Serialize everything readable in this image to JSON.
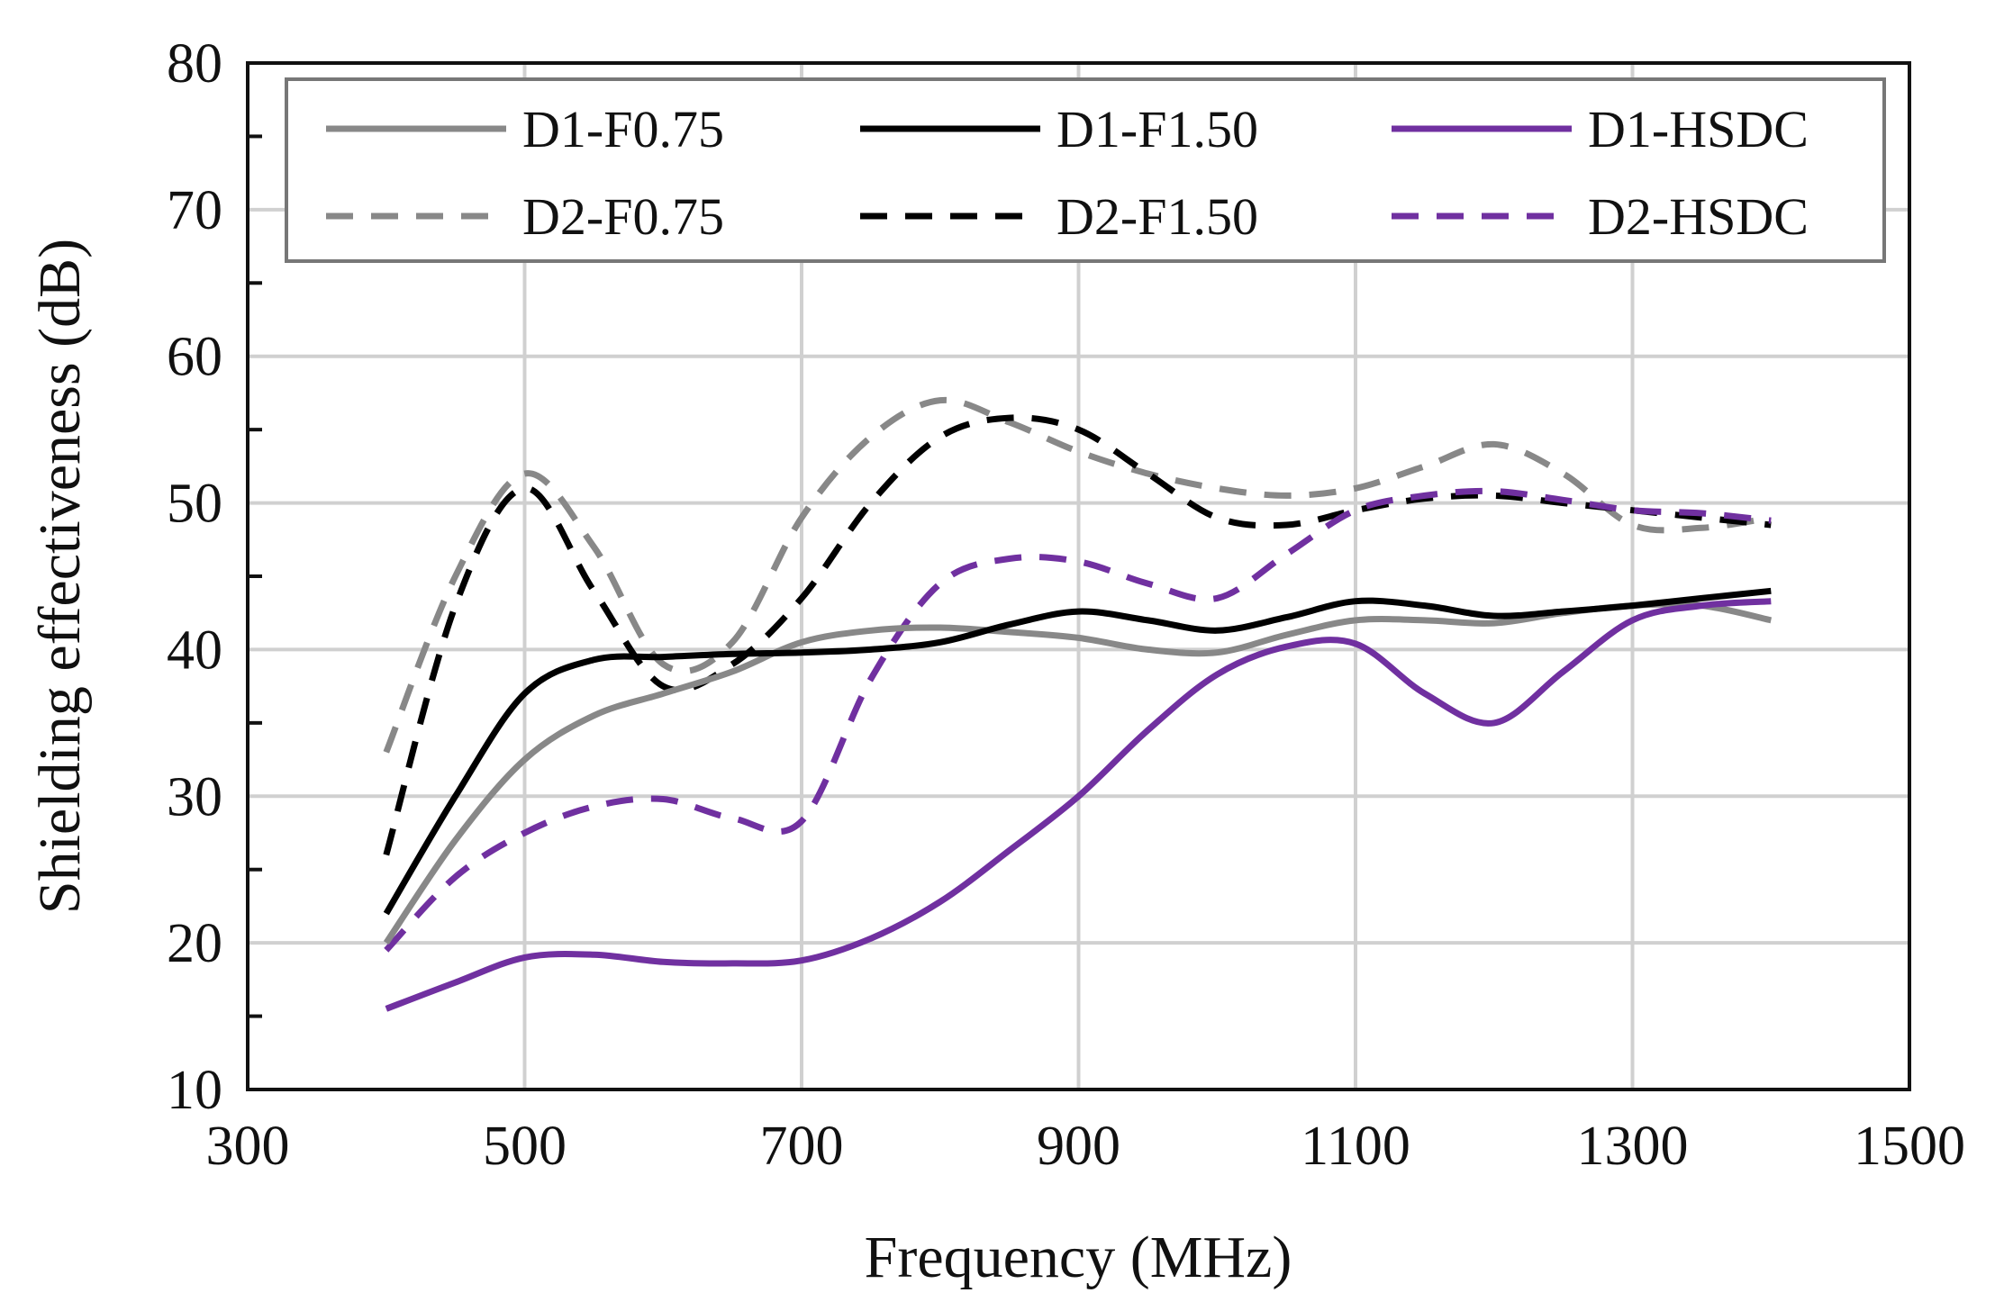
{
  "chart_data": {
    "type": "line",
    "title": "",
    "xlabel": "Frequency (MHz)",
    "ylabel": "Shielding effectiveness (dB)",
    "xlim": [
      300,
      1500
    ],
    "ylim": [
      10,
      80
    ],
    "xticks": [
      300,
      500,
      700,
      900,
      1100,
      1300,
      1500
    ],
    "yticks": [
      10,
      20,
      30,
      40,
      50,
      60,
      70,
      80
    ],
    "grid": true,
    "legend_position": "top",
    "x": [
      400,
      450,
      500,
      550,
      600,
      650,
      700,
      750,
      800,
      850,
      900,
      950,
      1000,
      1050,
      1100,
      1150,
      1200,
      1250,
      1300,
      1350,
      1400
    ],
    "series": [
      {
        "name": "D1-F0.75",
        "color": "#888888",
        "dash": "solid",
        "values": [
          20,
          27,
          32.5,
          35.5,
          37,
          38.5,
          40.5,
          41.3,
          41.5,
          41.2,
          40.8,
          40,
          39.8,
          41,
          42,
          42,
          41.8,
          42.5,
          43,
          43,
          42
        ]
      },
      {
        "name": "D1-F1.50",
        "color": "#000000",
        "dash": "solid",
        "values": [
          22,
          30,
          37,
          39.3,
          39.5,
          39.7,
          39.8,
          40,
          40.5,
          41.7,
          42.6,
          42,
          41.3,
          42.2,
          43.3,
          43,
          42.3,
          42.6,
          43,
          43.5,
          44
        ]
      },
      {
        "name": "D1-HSDC",
        "color": "#7030A0",
        "dash": "solid",
        "values": [
          15.5,
          17.3,
          19,
          19.2,
          18.7,
          18.6,
          18.8,
          20.3,
          22.8,
          26.3,
          30,
          34.5,
          38.3,
          40.2,
          40.4,
          37,
          35,
          38.5,
          42,
          43,
          43.3
        ]
      },
      {
        "name": "D2-F0.75",
        "color": "#888888",
        "dash": "dashed",
        "values": [
          33,
          45,
          52,
          47,
          39,
          40.5,
          49,
          54.5,
          57,
          55.5,
          53.5,
          52,
          51,
          50.5,
          51,
          52.5,
          54,
          52,
          48.5,
          48.3,
          49
        ]
      },
      {
        "name": "D2-F1.50",
        "color": "#000000",
        "dash": "dashed",
        "values": [
          26,
          43,
          51,
          44,
          37.5,
          39,
          43.5,
          50,
          54.5,
          55.8,
          55,
          52,
          49,
          48.5,
          49.5,
          50.3,
          50.5,
          50,
          49.5,
          49,
          48.5
        ]
      },
      {
        "name": "D2-HSDC",
        "color": "#7030A0",
        "dash": "dashed",
        "values": [
          19.5,
          24.5,
          27.5,
          29.3,
          29.8,
          28.5,
          28.3,
          38,
          44.5,
          46.2,
          46,
          44.5,
          43.5,
          46.5,
          49.5,
          50.5,
          50.8,
          50.2,
          49.5,
          49.3,
          48.8
        ]
      }
    ]
  }
}
